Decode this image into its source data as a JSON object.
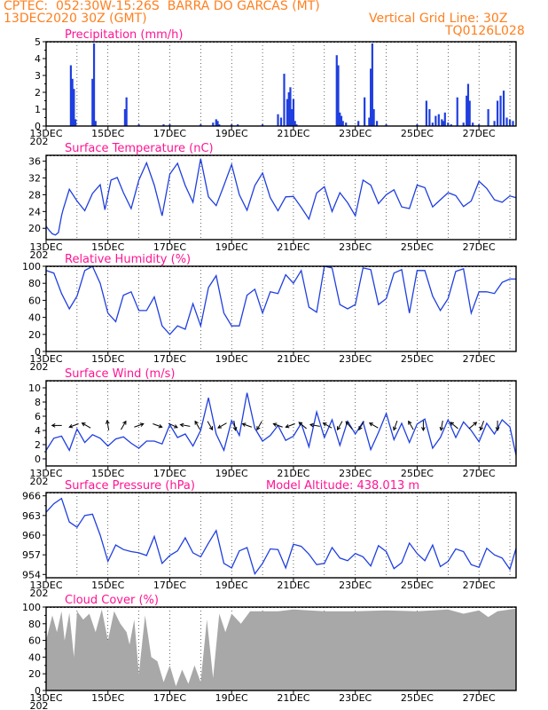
{
  "header": {
    "line1": "CPTEC:  052:30W-15:26S  BARRA DO GARCAS (MT)",
    "line2_left": "13DEC2020 30Z (GMT)",
    "line2_right": "Vertical Grid Line: 30Z",
    "line3_right": "TQ0126L028"
  },
  "colors": {
    "header": "#ff7f1e",
    "title": "#ff1493",
    "line": "#1f3fdf",
    "bar": "#1f3fdf",
    "cloud": "#a8a8a8",
    "wind_arrow": "#000000"
  },
  "x_axis": {
    "labels": [
      "13DEC",
      "15DEC",
      "17DEC",
      "19DEC",
      "21DEC",
      "23DEC",
      "25DEC",
      "27DEC"
    ],
    "start_day": 13,
    "end_day": 28.2,
    "grid_days": [
      14,
      15,
      16,
      17,
      18,
      19,
      20,
      21,
      22,
      23,
      24,
      25,
      26,
      27,
      28
    ],
    "stub_label": "202"
  },
  "chart_data": [
    {
      "id": "precip",
      "type": "bar",
      "title": "Precipitation (mm/h)",
      "ylim": [
        0,
        5
      ],
      "yticks": [
        "0",
        "1",
        "2",
        "3",
        "4",
        "5"
      ],
      "x": [
        13.8,
        13.85,
        13.9,
        13.95,
        14.5,
        14.55,
        14.6,
        15.55,
        15.6,
        16.0,
        16.8,
        17.0,
        18.0,
        18.4,
        18.5,
        18.55,
        18.6,
        19.0,
        19.2,
        20.0,
        20.5,
        20.6,
        20.7,
        20.8,
        20.85,
        20.9,
        20.95,
        21.0,
        21.05,
        21.1,
        22.4,
        22.45,
        22.5,
        22.55,
        22.6,
        22.7,
        23.1,
        23.3,
        23.45,
        23.5,
        23.55,
        23.6,
        23.7,
        24.0,
        25.0,
        25.3,
        25.4,
        25.5,
        25.6,
        25.7,
        25.8,
        25.85,
        25.9,
        26.0,
        26.1,
        26.3,
        26.5,
        26.6,
        26.65,
        26.7,
        26.8,
        27.0,
        27.3,
        27.5,
        27.6,
        27.7,
        27.8,
        27.9,
        28.0,
        28.1
      ],
      "values": [
        3.6,
        2.8,
        2.2,
        0.4,
        2.8,
        4.9,
        0.3,
        1.0,
        1.7,
        0.1,
        0.1,
        0.1,
        0.1,
        0.2,
        0.4,
        0.3,
        0.1,
        0.1,
        0.1,
        0.1,
        0.7,
        0.5,
        3.1,
        1.6,
        2.0,
        2.3,
        1.0,
        1.6,
        0.3,
        0.1,
        4.2,
        3.6,
        0.8,
        0.6,
        0.3,
        0.2,
        0.3,
        1.7,
        0.5,
        3.4,
        4.9,
        1.0,
        0.3,
        0.1,
        0.1,
        1.5,
        1.0,
        0.2,
        0.6,
        0.7,
        0.4,
        0.3,
        0.8,
        0.2,
        0.1,
        1.7,
        0.2,
        1.8,
        2.5,
        1.5,
        0.2,
        0.1,
        1.0,
        0.3,
        1.5,
        1.8,
        2.1,
        0.5,
        0.4,
        0.3
      ]
    },
    {
      "id": "temp",
      "type": "line",
      "title": "Surface Temperature (nC)",
      "ylim": [
        17.3,
        37.4
      ],
      "yticks": [
        "20",
        "24",
        "28",
        "32",
        "36"
      ],
      "x": [
        13.0,
        13.1,
        13.2,
        13.3,
        13.4,
        13.5,
        13.55,
        13.75,
        14.0,
        14.25,
        14.5,
        14.75,
        14.9,
        15.1,
        15.3,
        15.5,
        15.75,
        16.0,
        16.25,
        16.5,
        16.75,
        17.0,
        17.25,
        17.5,
        17.75,
        18.0,
        18.25,
        18.5,
        18.75,
        19.0,
        19.25,
        19.5,
        19.75,
        20.0,
        20.25,
        20.5,
        20.75,
        21.0,
        21.25,
        21.5,
        21.75,
        22.0,
        22.25,
        22.5,
        22.75,
        23.0,
        23.25,
        23.5,
        23.75,
        24.0,
        24.25,
        24.5,
        24.75,
        25.0,
        25.25,
        25.5,
        25.75,
        26.0,
        26.25,
        26.5,
        26.75,
        27.0,
        27.25,
        27.5,
        27.75,
        28.0,
        28.2
      ],
      "values": [
        20.5,
        19.5,
        18.7,
        18.4,
        19.0,
        23.0,
        24.5,
        29.3,
        26.5,
        24.2,
        28.3,
        30.4,
        24.4,
        31.5,
        32.1,
        28.5,
        24.7,
        31.5,
        35.6,
        30.3,
        23.0,
        32.9,
        35.5,
        30.2,
        26.2,
        36.6,
        27.5,
        25.4,
        30.2,
        35.2,
        28.0,
        24.3,
        30.2,
        33.2,
        27.3,
        24.2,
        27.5,
        27.6,
        25.0,
        22.2,
        28.4,
        29.9,
        24.0,
        28.5,
        26.1,
        23.0,
        31.5,
        30.3,
        25.9,
        28.0,
        29.2,
        25.1,
        24.7,
        30.3,
        29.7,
        25.1,
        26.8,
        28.5,
        27.8,
        25.2,
        26.5,
        31.2,
        29.5,
        26.8,
        26.2,
        27.7,
        27.3
      ]
    },
    {
      "id": "rh",
      "type": "line",
      "title": "Relative Humidity (%)",
      "ylim": [
        0,
        100
      ],
      "yticks": [
        "0",
        "20",
        "40",
        "60",
        "80",
        "100"
      ],
      "x": [
        13.0,
        13.25,
        13.5,
        13.75,
        14.0,
        14.25,
        14.5,
        14.75,
        15.0,
        15.25,
        15.5,
        15.75,
        16.0,
        16.25,
        16.5,
        16.75,
        17.0,
        17.25,
        17.5,
        17.75,
        18.0,
        18.25,
        18.5,
        18.75,
        19.0,
        19.25,
        19.5,
        19.75,
        20.0,
        20.25,
        20.5,
        20.75,
        21.0,
        21.25,
        21.5,
        21.75,
        22.0,
        22.25,
        22.5,
        22.75,
        23.0,
        23.25,
        23.5,
        23.75,
        24.0,
        24.25,
        24.5,
        24.75,
        25.0,
        25.25,
        25.5,
        25.75,
        26.0,
        26.25,
        26.5,
        26.75,
        27.0,
        27.25,
        27.5,
        27.75,
        28.0,
        28.2
      ],
      "values": [
        95,
        92,
        68,
        50,
        65,
        95,
        100,
        80,
        45,
        35,
        66,
        70,
        48,
        48,
        64,
        30,
        20,
        30,
        26,
        56,
        30,
        75,
        89,
        45,
        30,
        30,
        66,
        73,
        45,
        70,
        68,
        90,
        80,
        95,
        52,
        46,
        100,
        98,
        55,
        50,
        55,
        98,
        96,
        55,
        62,
        92,
        96,
        45,
        95,
        95,
        65,
        48,
        62,
        94,
        97,
        45,
        70,
        70,
        68,
        81,
        85,
        85
      ]
    },
    {
      "id": "wind",
      "type": "line",
      "title": "Surface Wind (m/s)",
      "ylim": [
        -1,
        11
      ],
      "yticks": [
        "0",
        "2",
        "4",
        "6",
        "8",
        "10"
      ],
      "x": [
        13.0,
        13.25,
        13.5,
        13.75,
        14.0,
        14.25,
        14.5,
        14.75,
        15.0,
        15.25,
        15.5,
        15.75,
        16.0,
        16.25,
        16.5,
        16.75,
        17.0,
        17.25,
        17.5,
        17.75,
        18.0,
        18.25,
        18.5,
        18.75,
        19.0,
        19.25,
        19.5,
        19.75,
        20.0,
        20.25,
        20.5,
        20.75,
        21.0,
        21.25,
        21.5,
        21.75,
        22.0,
        22.25,
        22.5,
        22.75,
        23.0,
        23.25,
        23.5,
        23.75,
        24.0,
        24.25,
        24.5,
        24.75,
        25.0,
        25.25,
        25.5,
        25.75,
        26.0,
        26.25,
        26.5,
        26.75,
        27.0,
        27.25,
        27.5,
        27.75,
        28.0,
        28.2
      ],
      "values": [
        1.2,
        2.9,
        3.2,
        1.2,
        4.2,
        2.3,
        3.4,
        2.9,
        1.8,
        2.8,
        3.1,
        2.2,
        1.5,
        2.5,
        2.5,
        2.1,
        4.8,
        3.0,
        3.5,
        1.8,
        4.0,
        8.6,
        3.5,
        1.2,
        5.4,
        3.3,
        9.3,
        4.3,
        2.5,
        3.3,
        4.7,
        2.6,
        3.2,
        5.0,
        1.7,
        6.6,
        3.0,
        5.5,
        1.9,
        5.3,
        3.5,
        5.2,
        1.3,
        3.7,
        6.4,
        2.7,
        5.0,
        2.3,
        4.9,
        5.6,
        1.5,
        3.0,
        5.5,
        3.0,
        5.2,
        4.0,
        2.4,
        5.0,
        3.5,
        5.5,
        4.5,
        0.5
      ],
      "arrows": [
        {
          "x": 13.35,
          "deg": 180
        },
        {
          "x": 13.9,
          "deg": 200
        },
        {
          "x": 14.3,
          "deg": 150
        },
        {
          "x": 15.0,
          "deg": 100
        },
        {
          "x": 15.5,
          "deg": 60
        },
        {
          "x": 16.0,
          "deg": 20
        },
        {
          "x": 16.6,
          "deg": -20
        },
        {
          "x": 17.1,
          "deg": -25
        },
        {
          "x": 17.5,
          "deg": 170
        },
        {
          "x": 17.9,
          "deg": 120
        },
        {
          "x": 18.3,
          "deg": -60
        },
        {
          "x": 18.7,
          "deg": -150
        },
        {
          "x": 19.1,
          "deg": -80
        },
        {
          "x": 19.5,
          "deg": 160
        },
        {
          "x": 19.9,
          "deg": -120
        },
        {
          "x": 20.5,
          "deg": 160
        },
        {
          "x": 20.9,
          "deg": -160
        },
        {
          "x": 21.3,
          "deg": 140
        },
        {
          "x": 21.7,
          "deg": 170
        },
        {
          "x": 22.1,
          "deg": 150
        },
        {
          "x": 22.5,
          "deg": -120
        },
        {
          "x": 22.8,
          "deg": 130
        },
        {
          "x": 23.2,
          "deg": -120
        },
        {
          "x": 23.6,
          "deg": 150
        },
        {
          "x": 24.3,
          "deg": -110
        },
        {
          "x": 24.8,
          "deg": 120
        },
        {
          "x": 25.2,
          "deg": -90
        },
        {
          "x": 25.8,
          "deg": -100
        },
        {
          "x": 26.2,
          "deg": 140
        },
        {
          "x": 26.8,
          "deg": 40
        },
        {
          "x": 27.1,
          "deg": -110
        },
        {
          "x": 27.6,
          "deg": -90
        }
      ]
    },
    {
      "id": "pres",
      "type": "line",
      "title": "Surface Pressure (hPa)",
      "annotation": "Model Altitude: 438.013  m",
      "ylim": [
        953.5,
        966.5
      ],
      "yticks": [
        "954",
        "957",
        "960",
        "963",
        "966"
      ],
      "x": [
        13.0,
        13.25,
        13.5,
        13.75,
        14.0,
        14.25,
        14.5,
        14.75,
        15.0,
        15.25,
        15.5,
        15.75,
        16.0,
        16.25,
        16.5,
        16.75,
        17.0,
        17.25,
        17.5,
        17.75,
        18.0,
        18.25,
        18.5,
        18.75,
        19.0,
        19.25,
        19.5,
        19.75,
        20.0,
        20.25,
        20.5,
        20.75,
        21.0,
        21.25,
        21.5,
        21.75,
        22.0,
        22.25,
        22.5,
        22.75,
        23.0,
        23.25,
        23.5,
        23.75,
        24.0,
        24.25,
        24.5,
        24.75,
        25.0,
        25.25,
        25.5,
        25.75,
        26.0,
        26.25,
        26.5,
        26.75,
        27.0,
        27.25,
        27.5,
        27.75,
        28.0,
        28.2
      ],
      "values": [
        963.5,
        964.8,
        965.6,
        962.0,
        961.2,
        963.0,
        963.2,
        960.0,
        956.0,
        958.5,
        957.8,
        957.5,
        957.3,
        956.9,
        959.8,
        955.7,
        956.9,
        957.6,
        959.6,
        957.3,
        956.7,
        958.8,
        960.7,
        955.7,
        955.0,
        957.6,
        958.1,
        954.1,
        955.7,
        957.9,
        957.8,
        955.0,
        958.6,
        958.3,
        957.1,
        955.5,
        955.7,
        958.1,
        956.5,
        956.1,
        957.2,
        956.7,
        955.3,
        958.4,
        957.5,
        954.9,
        955.8,
        958.8,
        957.2,
        956.1,
        958.5,
        955.2,
        956.0,
        957.9,
        957.5,
        955.5,
        955.1,
        958.0,
        957.0,
        956.5,
        954.8,
        958.0
      ]
    },
    {
      "id": "cloud",
      "type": "area",
      "title": "Cloud Cover (%)",
      "ylim": [
        0,
        100
      ],
      "yticks": [
        "0",
        "20",
        "40",
        "60",
        "80",
        "100"
      ],
      "x": [
        13.0,
        13.2,
        13.35,
        13.5,
        13.6,
        13.75,
        13.9,
        14.0,
        14.2,
        14.4,
        14.6,
        14.8,
        15.0,
        15.2,
        15.4,
        15.6,
        15.7,
        15.85,
        16.0,
        16.2,
        16.4,
        16.6,
        16.8,
        17.0,
        17.2,
        17.4,
        17.6,
        17.8,
        18.0,
        18.2,
        18.4,
        18.6,
        18.8,
        19.0,
        19.3,
        19.6,
        20.0,
        20.5,
        21.0,
        22.0,
        23.0,
        24.0,
        25.0,
        26.0,
        26.5,
        27.0,
        27.3,
        27.6,
        28.0,
        28.2
      ],
      "values": [
        60,
        90,
        70,
        95,
        60,
        93,
        40,
        95,
        85,
        92,
        70,
        97,
        60,
        95,
        80,
        70,
        55,
        85,
        20,
        90,
        40,
        35,
        10,
        30,
        5,
        25,
        8,
        30,
        10,
        85,
        15,
        92,
        70,
        92,
        80,
        95,
        95,
        95,
        97,
        95,
        95,
        96,
        95,
        97,
        92,
        96,
        88,
        95,
        97,
        98
      ]
    }
  ]
}
